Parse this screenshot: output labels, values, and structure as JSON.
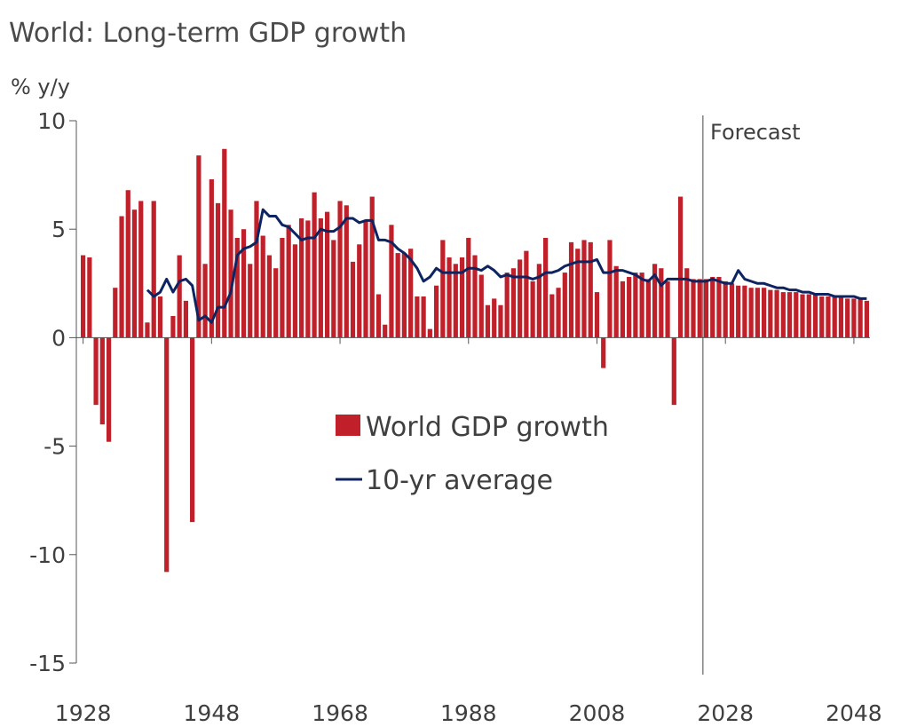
{
  "colors": {
    "bars": "#c0202a",
    "line": "#0d2461",
    "axis": "#555555"
  },
  "chart_data": {
    "type": "bar",
    "title": "World: Long-term GDP growth",
    "ylabel": "% y/y",
    "ylim": [
      -15,
      10
    ],
    "yticks": [
      10,
      5,
      0,
      -5,
      -10,
      -15
    ],
    "xticks": [
      1928,
      1948,
      1968,
      1988,
      2008,
      2028,
      2048
    ],
    "forecast_start": 2025,
    "annotation": "Forecast",
    "legend": {
      "position": "center",
      "bars_label": "World GDP growth",
      "line_label": "10-yr average"
    },
    "series": [
      {
        "name": "World GDP growth",
        "type": "bar",
        "x": [
          1928,
          1929,
          1930,
          1931,
          1932,
          1933,
          1934,
          1935,
          1936,
          1937,
          1938,
          1939,
          1940,
          1941,
          1942,
          1943,
          1944,
          1945,
          1946,
          1947,
          1948,
          1949,
          1950,
          1951,
          1952,
          1953,
          1954,
          1955,
          1956,
          1957,
          1958,
          1959,
          1960,
          1961,
          1962,
          1963,
          1964,
          1965,
          1966,
          1967,
          1968,
          1969,
          1970,
          1971,
          1972,
          1973,
          1974,
          1975,
          1976,
          1977,
          1978,
          1979,
          1980,
          1981,
          1982,
          1983,
          1984,
          1985,
          1986,
          1987,
          1988,
          1989,
          1990,
          1991,
          1992,
          1993,
          1994,
          1995,
          1996,
          1997,
          1998,
          1999,
          2000,
          2001,
          2002,
          2003,
          2004,
          2005,
          2006,
          2007,
          2008,
          2009,
          2010,
          2011,
          2012,
          2013,
          2014,
          2015,
          2016,
          2017,
          2018,
          2019,
          2020,
          2021,
          2022,
          2023,
          2024,
          2025,
          2026,
          2027,
          2028,
          2029,
          2030,
          2031,
          2032,
          2033,
          2034,
          2035,
          2036,
          2037,
          2038,
          2039,
          2040,
          2041,
          2042,
          2043,
          2044,
          2045,
          2046,
          2047,
          2048,
          2049,
          2050
        ],
        "values": [
          3.8,
          3.7,
          -3.1,
          -4.0,
          -4.8,
          2.3,
          5.6,
          6.8,
          5.9,
          6.3,
          0.7,
          6.3,
          1.9,
          -10.8,
          1.0,
          3.8,
          1.7,
          -8.5,
          8.4,
          3.4,
          7.3,
          6.2,
          8.7,
          5.9,
          4.6,
          5.0,
          3.4,
          6.3,
          4.7,
          3.8,
          3.2,
          4.6,
          5.2,
          4.3,
          5.5,
          5.4,
          6.7,
          5.5,
          5.8,
          4.5,
          6.3,
          6.1,
          3.5,
          4.3,
          5.4,
          6.5,
          2.0,
          0.6,
          5.2,
          3.9,
          3.9,
          4.1,
          1.9,
          1.9,
          0.4,
          2.4,
          4.5,
          3.7,
          3.4,
          3.7,
          4.6,
          3.8,
          2.9,
          1.5,
          1.8,
          1.5,
          3.0,
          3.2,
          3.6,
          4.0,
          2.6,
          3.4,
          4.6,
          2.0,
          2.3,
          3.0,
          4.4,
          4.1,
          4.5,
          4.4,
          2.1,
          -1.4,
          4.5,
          3.3,
          2.6,
          2.8,
          3.0,
          3.0,
          2.7,
          3.4,
          3.2,
          2.6,
          -3.1,
          6.5,
          3.2,
          2.7,
          2.7,
          2.7,
          2.8,
          2.8,
          2.6,
          2.5,
          2.4,
          2.4,
          2.3,
          2.3,
          2.3,
          2.2,
          2.2,
          2.1,
          2.1,
          2.1,
          2.0,
          2.0,
          2.0,
          1.9,
          1.9,
          1.9,
          1.9,
          1.8,
          1.8,
          1.8,
          1.7
        ]
      },
      {
        "name": "10-yr average",
        "type": "line",
        "x": [
          1938,
          1939,
          1940,
          1941,
          1942,
          1943,
          1944,
          1945,
          1946,
          1947,
          1948,
          1949,
          1950,
          1951,
          1952,
          1953,
          1954,
          1955,
          1956,
          1957,
          1958,
          1959,
          1960,
          1961,
          1962,
          1963,
          1964,
          1965,
          1966,
          1967,
          1968,
          1969,
          1970,
          1971,
          1972,
          1973,
          1974,
          1975,
          1976,
          1977,
          1978,
          1979,
          1980,
          1981,
          1982,
          1983,
          1984,
          1985,
          1986,
          1987,
          1988,
          1989,
          1990,
          1991,
          1992,
          1993,
          1994,
          1995,
          1996,
          1997,
          1998,
          1999,
          2000,
          2001,
          2002,
          2003,
          2004,
          2005,
          2006,
          2007,
          2008,
          2009,
          2010,
          2011,
          2012,
          2013,
          2014,
          2015,
          2016,
          2017,
          2018,
          2019,
          2020,
          2021,
          2022,
          2023,
          2024,
          2025,
          2026,
          2027,
          2028,
          2029,
          2030,
          2031,
          2032,
          2033,
          2034,
          2035,
          2036,
          2037,
          2038,
          2039,
          2040,
          2041,
          2042,
          2043,
          2044,
          2045,
          2046,
          2047,
          2048,
          2049,
          2050
        ],
        "values": [
          2.2,
          1.9,
          2.1,
          2.7,
          2.1,
          2.6,
          2.7,
          2.4,
          0.8,
          1.0,
          0.7,
          1.4,
          1.4,
          2.1,
          3.8,
          4.1,
          4.2,
          4.4,
          5.9,
          5.6,
          5.6,
          5.2,
          5.1,
          4.8,
          4.5,
          4.6,
          4.6,
          5.0,
          4.9,
          4.9,
          5.1,
          5.5,
          5.5,
          5.3,
          5.4,
          5.4,
          4.5,
          4.5,
          4.4,
          4.1,
          3.9,
          3.6,
          3.2,
          2.6,
          2.8,
          3.2,
          3.0,
          3.0,
          3.0,
          3.0,
          3.2,
          3.2,
          3.1,
          3.3,
          3.1,
          2.8,
          2.9,
          2.8,
          2.8,
          2.8,
          2.7,
          2.8,
          3.0,
          3.0,
          3.1,
          3.3,
          3.4,
          3.5,
          3.5,
          3.5,
          3.6,
          3.0,
          3.0,
          3.1,
          3.1,
          3.0,
          2.9,
          2.7,
          2.6,
          2.9,
          2.4,
          2.7,
          2.7,
          2.7,
          2.7,
          2.6,
          2.6,
          2.6,
          2.7,
          2.6,
          2.5,
          2.5,
          3.1,
          2.7,
          2.6,
          2.5,
          2.5,
          2.4,
          2.3,
          2.3,
          2.2,
          2.2,
          2.1,
          2.1,
          2.0,
          2.0,
          2.0,
          1.9,
          1.9,
          1.9,
          1.9,
          1.8,
          1.8
        ]
      }
    ]
  }
}
